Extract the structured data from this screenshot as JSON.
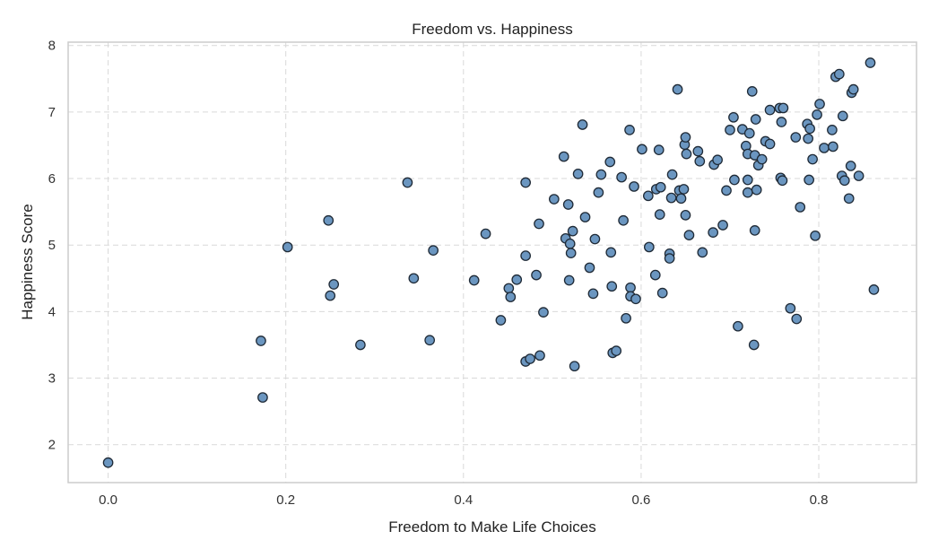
{
  "chart_data": {
    "type": "scatter",
    "title": "Freedom vs. Happiness",
    "xlabel": "Freedom to Make Life Choices",
    "ylabel": "Happiness Score",
    "xlim": [
      -0.045,
      0.91
    ],
    "ylim": [
      1.43,
      8.05
    ],
    "xticks": [
      0.0,
      0.2,
      0.4,
      0.6,
      0.8
    ],
    "xtick_labels": [
      "0.0",
      "0.2",
      "0.4",
      "0.6",
      "0.8"
    ],
    "yticks": [
      2,
      3,
      4,
      5,
      6,
      7,
      8
    ],
    "ytick_labels": [
      "2",
      "3",
      "4",
      "5",
      "6",
      "7",
      "8"
    ],
    "grid": true,
    "legend": "none",
    "colors": {
      "marker_fill": "#6b96c0",
      "marker_edge": "#1f2a36",
      "grid": "#d9d9d9",
      "frame": "#cccccc"
    },
    "points": [
      [
        0.0,
        1.73
      ],
      [
        0.172,
        3.56
      ],
      [
        0.174,
        2.71
      ],
      [
        0.202,
        4.97
      ],
      [
        0.248,
        5.37
      ],
      [
        0.25,
        4.24
      ],
      [
        0.254,
        4.41
      ],
      [
        0.284,
        3.5
      ],
      [
        0.337,
        5.94
      ],
      [
        0.344,
        4.5
      ],
      [
        0.362,
        3.57
      ],
      [
        0.366,
        4.92
      ],
      [
        0.412,
        4.47
      ],
      [
        0.425,
        5.17
      ],
      [
        0.442,
        3.87
      ],
      [
        0.451,
        4.35
      ],
      [
        0.453,
        4.22
      ],
      [
        0.46,
        4.48
      ],
      [
        0.47,
        5.94
      ],
      [
        0.47,
        4.84
      ],
      [
        0.47,
        3.25
      ],
      [
        0.475,
        3.29
      ],
      [
        0.482,
        4.55
      ],
      [
        0.485,
        5.32
      ],
      [
        0.486,
        3.34
      ],
      [
        0.49,
        3.99
      ],
      [
        0.502,
        5.69
      ],
      [
        0.513,
        6.33
      ],
      [
        0.515,
        5.1
      ],
      [
        0.518,
        5.61
      ],
      [
        0.519,
        4.47
      ],
      [
        0.52,
        5.02
      ],
      [
        0.521,
        4.88
      ],
      [
        0.523,
        5.21
      ],
      [
        0.525,
        3.18
      ],
      [
        0.529,
        6.07
      ],
      [
        0.534,
        6.81
      ],
      [
        0.537,
        5.42
      ],
      [
        0.542,
        4.66
      ],
      [
        0.546,
        4.27
      ],
      [
        0.548,
        5.09
      ],
      [
        0.552,
        5.79
      ],
      [
        0.555,
        6.06
      ],
      [
        0.565,
        6.25
      ],
      [
        0.566,
        4.89
      ],
      [
        0.567,
        4.38
      ],
      [
        0.568,
        3.38
      ],
      [
        0.572,
        3.41
      ],
      [
        0.578,
        6.02
      ],
      [
        0.58,
        5.37
      ],
      [
        0.583,
        3.9
      ],
      [
        0.587,
        6.73
      ],
      [
        0.588,
        4.36
      ],
      [
        0.588,
        4.23
      ],
      [
        0.592,
        5.88
      ],
      [
        0.594,
        4.19
      ],
      [
        0.601,
        6.44
      ],
      [
        0.608,
        5.74
      ],
      [
        0.609,
        4.97
      ],
      [
        0.616,
        4.55
      ],
      [
        0.617,
        5.84
      ],
      [
        0.62,
        6.43
      ],
      [
        0.621,
        5.46
      ],
      [
        0.622,
        5.87
      ],
      [
        0.624,
        4.28
      ],
      [
        0.632,
        4.87
      ],
      [
        0.632,
        4.8
      ],
      [
        0.634,
        5.71
      ],
      [
        0.635,
        6.06
      ],
      [
        0.641,
        7.34
      ],
      [
        0.643,
        5.82
      ],
      [
        0.645,
        5.7
      ],
      [
        0.648,
        5.84
      ],
      [
        0.649,
        6.51
      ],
      [
        0.65,
        5.45
      ],
      [
        0.65,
        6.62
      ],
      [
        0.651,
        6.37
      ],
      [
        0.654,
        5.15
      ],
      [
        0.664,
        6.41
      ],
      [
        0.666,
        6.26
      ],
      [
        0.669,
        4.89
      ],
      [
        0.681,
        5.19
      ],
      [
        0.682,
        6.21
      ],
      [
        0.686,
        6.28
      ],
      [
        0.692,
        5.3
      ],
      [
        0.696,
        5.82
      ],
      [
        0.7,
        6.73
      ],
      [
        0.704,
        6.92
      ],
      [
        0.705,
        5.98
      ],
      [
        0.709,
        3.78
      ],
      [
        0.714,
        6.74
      ],
      [
        0.718,
        6.49
      ],
      [
        0.72,
        6.37
      ],
      [
        0.72,
        5.79
      ],
      [
        0.72,
        5.98
      ],
      [
        0.722,
        6.68
      ],
      [
        0.725,
        7.31
      ],
      [
        0.727,
        3.5
      ],
      [
        0.728,
        6.35
      ],
      [
        0.728,
        5.22
      ],
      [
        0.729,
        6.89
      ],
      [
        0.73,
        5.83
      ],
      [
        0.732,
        6.2
      ],
      [
        0.736,
        6.29
      ],
      [
        0.74,
        6.56
      ],
      [
        0.745,
        7.03
      ],
      [
        0.745,
        6.52
      ],
      [
        0.756,
        7.06
      ],
      [
        0.757,
        6.01
      ],
      [
        0.758,
        6.85
      ],
      [
        0.759,
        5.97
      ],
      [
        0.76,
        7.06
      ],
      [
        0.768,
        4.05
      ],
      [
        0.774,
        6.62
      ],
      [
        0.775,
        3.89
      ],
      [
        0.779,
        5.57
      ],
      [
        0.787,
        6.82
      ],
      [
        0.788,
        6.6
      ],
      [
        0.789,
        5.98
      ],
      [
        0.79,
        6.75
      ],
      [
        0.793,
        6.29
      ],
      [
        0.796,
        5.14
      ],
      [
        0.798,
        6.96
      ],
      [
        0.801,
        7.12
      ],
      [
        0.806,
        6.46
      ],
      [
        0.815,
        6.73
      ],
      [
        0.816,
        6.48
      ],
      [
        0.819,
        7.53
      ],
      [
        0.823,
        7.57
      ],
      [
        0.826,
        6.04
      ],
      [
        0.827,
        6.94
      ],
      [
        0.829,
        5.97
      ],
      [
        0.834,
        5.7
      ],
      [
        0.836,
        6.19
      ],
      [
        0.837,
        7.29
      ],
      [
        0.839,
        7.34
      ],
      [
        0.845,
        6.04
      ],
      [
        0.858,
        7.74
      ],
      [
        0.862,
        4.33
      ]
    ]
  }
}
